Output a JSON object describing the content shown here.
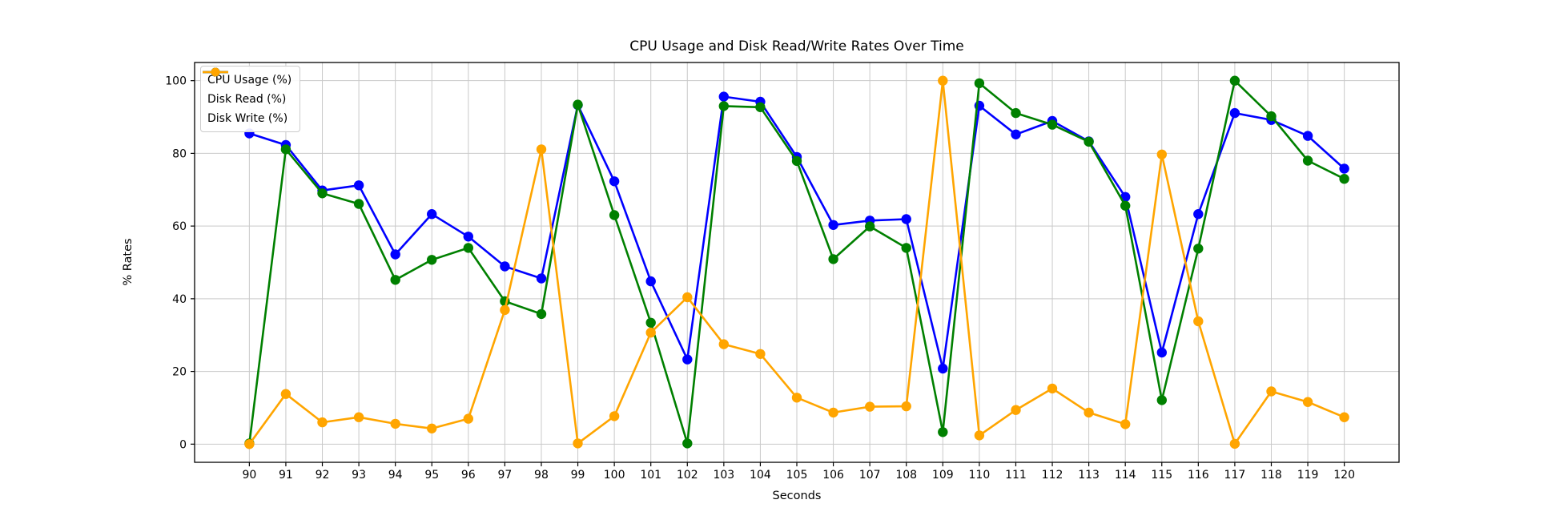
{
  "chart_data": {
    "type": "line",
    "title": "CPU Usage and Disk Read/Write Rates Over Time",
    "xlabel": "Seconds",
    "ylabel": "% Rates",
    "x": [
      90,
      91,
      92,
      93,
      94,
      95,
      96,
      97,
      98,
      99,
      100,
      101,
      102,
      103,
      104,
      105,
      106,
      107,
      108,
      109,
      110,
      111,
      112,
      113,
      114,
      115,
      116,
      117,
      118,
      119,
      120
    ],
    "series": [
      {
        "name": "CPU Usage (%)",
        "color": "#0000ff",
        "values": [
          85.5,
          82.3,
          69.8,
          71.2,
          52.2,
          63.3,
          57.1,
          48.9,
          45.6,
          93.3,
          72.3,
          44.8,
          23.3,
          95.6,
          94.2,
          79.0,
          60.3,
          61.5,
          61.9,
          20.8,
          93.1,
          85.2,
          88.9,
          83.3,
          68.0,
          25.2,
          63.3,
          91.1,
          89.2,
          84.8,
          75.8
        ]
      },
      {
        "name": "Disk Read (%)",
        "color": "#008000",
        "values": [
          0.2,
          81.1,
          69.0,
          66.1,
          45.2,
          50.7,
          54.0,
          39.3,
          35.8,
          93.4,
          63.0,
          33.4,
          0.2,
          93.0,
          92.7,
          77.9,
          50.9,
          59.9,
          54.0,
          3.3,
          99.3,
          91.1,
          87.9,
          83.2,
          65.6,
          12.1,
          53.8,
          100.0,
          90.2,
          78.0,
          73.0
        ]
      },
      {
        "name": "Disk Write (%)",
        "color": "#ffa500",
        "values": [
          0.0,
          13.8,
          6.0,
          7.4,
          5.6,
          4.3,
          7.0,
          36.9,
          81.1,
          0.2,
          7.7,
          30.7,
          40.4,
          27.5,
          24.8,
          12.8,
          8.7,
          10.3,
          10.4,
          100.0,
          2.4,
          9.4,
          15.3,
          8.7,
          5.5,
          79.7,
          33.8,
          0.1,
          14.5,
          11.6,
          7.4
        ]
      }
    ],
    "yticks": [
      0,
      20,
      40,
      60,
      80,
      100
    ],
    "xlim": [
      88.5,
      121.5
    ],
    "ylim": [
      -5,
      105
    ],
    "grid": true,
    "grid_color": "#c9c9c9",
    "spine_color": "#000000",
    "legend_position": "upper left",
    "marker": "circle"
  }
}
